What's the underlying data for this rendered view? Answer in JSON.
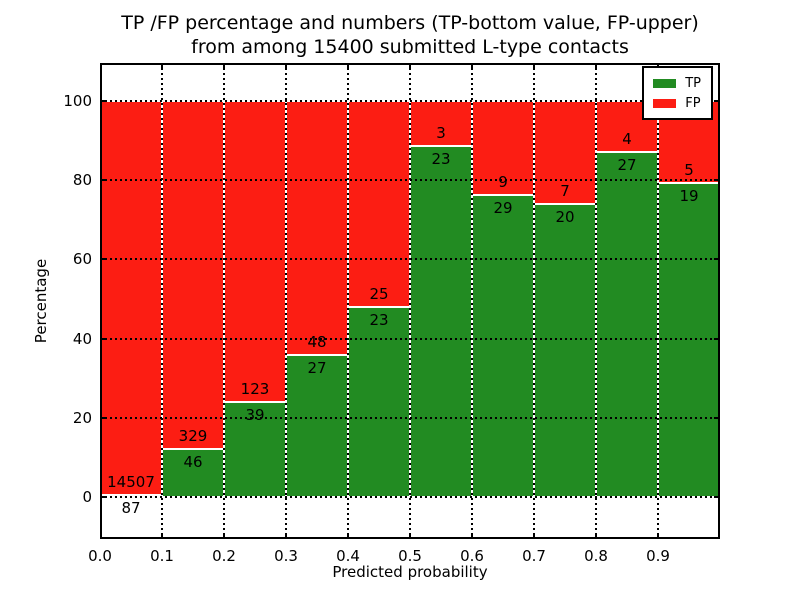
{
  "title": {
    "line1": "TP /FP percentage and numbers (TP-bottom value, FP-upper)",
    "line2": "from among 15400 submitted L-type contacts"
  },
  "axes": {
    "xlabel": "Predicted probability",
    "ylabel": "Percentage",
    "x_tick_labels": [
      "0.0",
      "0.1",
      "0.2",
      "0.3",
      "0.4",
      "0.5",
      "0.6",
      "0.7",
      "0.8",
      "0.9"
    ],
    "y_tick_labels": [
      "0",
      "20",
      "40",
      "60",
      "80",
      "100"
    ],
    "y_tick_values": [
      0,
      20,
      40,
      60,
      80,
      100
    ]
  },
  "legend": {
    "items": [
      {
        "label": "TP",
        "color": "#228b22"
      },
      {
        "label": "FP",
        "color": "#fc1d13"
      }
    ]
  },
  "chart_data": {
    "type": "bar",
    "stacked": true,
    "units": "percent of bin total",
    "title": "TP /FP percentage and numbers (TP-bottom value, FP-upper) from among 15400 submitted L-type contacts",
    "xlabel": "Predicted probability",
    "ylabel": "Percentage",
    "bin_width": 0.1,
    "categories": [
      "0.0-0.1",
      "0.1-0.2",
      "0.2-0.3",
      "0.3-0.4",
      "0.4-0.5",
      "0.5-0.6",
      "0.6-0.7",
      "0.7-0.8",
      "0.8-0.9",
      "0.9-1.0"
    ],
    "series": [
      {
        "name": "TP",
        "color": "#228b22",
        "counts": [
          87,
          46,
          39,
          27,
          23,
          23,
          29,
          20,
          27,
          19
        ],
        "percent": [
          0.6,
          12.27,
          24.07,
          36.0,
          47.92,
          88.46,
          76.32,
          74.07,
          87.1,
          79.17
        ]
      },
      {
        "name": "FP",
        "color": "#fc1d13",
        "counts": [
          14507,
          329,
          123,
          48,
          25,
          3,
          9,
          7,
          4,
          5
        ],
        "percent": [
          99.4,
          87.73,
          75.93,
          64.0,
          52.08,
          11.54,
          23.68,
          25.93,
          12.9,
          20.83
        ]
      }
    ],
    "xlim": [
      0.0,
      1.0
    ],
    "ylim": [
      -10.5,
      109.5
    ],
    "grid": true,
    "legend_position": "upper right"
  }
}
